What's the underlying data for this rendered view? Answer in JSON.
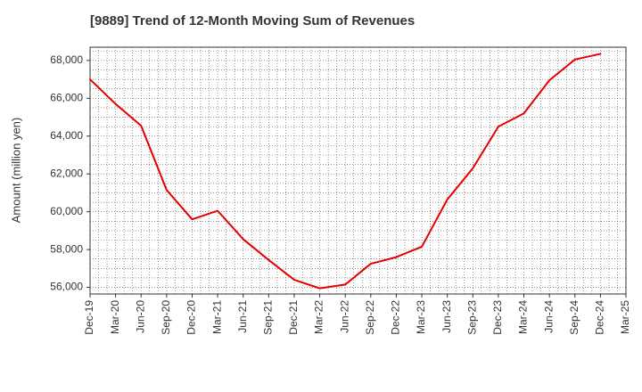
{
  "chart_data": {
    "type": "line",
    "title": "[9889]  Trend of 12-Month Moving Sum of Revenues",
    "ylabel": "Amount (million yen)",
    "xlabel": "",
    "categories": [
      "Dec-19",
      "Mar-20",
      "Jun-20",
      "Sep-20",
      "Dec-20",
      "Mar-21",
      "Jun-21",
      "Sep-21",
      "Dec-21",
      "Mar-22",
      "Jun-22",
      "Sep-22",
      "Dec-22",
      "Mar-23",
      "Jun-23",
      "Sep-23",
      "Dec-23",
      "Mar-24",
      "Jun-24",
      "Sep-24",
      "Dec-24",
      "Mar-25"
    ],
    "series": [
      {
        "values": [
          67000,
          65700,
          64550,
          61150,
          59600,
          60050,
          58550,
          57450,
          56400,
          55950,
          56150,
          57250,
          57600,
          58150,
          60650,
          62300,
          64500,
          65200,
          66950,
          68050,
          68350,
          null
        ],
        "color": "#e60000"
      }
    ],
    "yticks": [
      56000,
      58000,
      60000,
      62000,
      64000,
      66000,
      68000
    ],
    "ytick_labels": [
      "56,000",
      "58,000",
      "60,000",
      "62,000",
      "64,000",
      "66,000",
      "68,000"
    ],
    "ylim": [
      55650,
      68700
    ],
    "grid": true,
    "grid_style": "dotted",
    "legend": "none"
  }
}
